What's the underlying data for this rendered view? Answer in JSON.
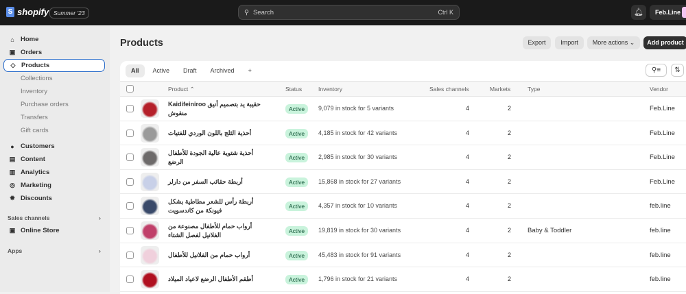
{
  "topbar": {
    "brand": "shopify",
    "edition": "Summer '23",
    "search_placeholder": "Search",
    "search_shortcut": "Ctrl K",
    "account": "Feb.Line"
  },
  "sidebar": {
    "items": [
      {
        "label": "Home",
        "icon": "home-icon",
        "glyph": "⌂"
      },
      {
        "label": "Orders",
        "icon": "inbox-icon",
        "glyph": "▣"
      },
      {
        "label": "Products",
        "icon": "tag-icon",
        "glyph": "◇",
        "selected": true
      },
      {
        "label": "Collections",
        "sub": true
      },
      {
        "label": "Inventory",
        "sub": true
      },
      {
        "label": "Purchase orders",
        "sub": true
      },
      {
        "label": "Transfers",
        "sub": true
      },
      {
        "label": "Gift cards",
        "sub": true
      },
      {
        "label": "Customers",
        "icon": "person-icon",
        "glyph": "●"
      },
      {
        "label": "Content",
        "icon": "content-icon",
        "glyph": "▤"
      },
      {
        "label": "Analytics",
        "icon": "chart-icon",
        "glyph": "▥"
      },
      {
        "label": "Marketing",
        "icon": "target-icon",
        "glyph": "◎"
      },
      {
        "label": "Discounts",
        "icon": "discount-icon",
        "glyph": "✹"
      }
    ],
    "sales_channels": "Sales channels",
    "online_store": "Online Store",
    "apps": "Apps"
  },
  "page": {
    "title": "Products",
    "export": "Export",
    "import": "Import",
    "more_actions": "More actions",
    "add_product": "Add product"
  },
  "tabs": [
    "All",
    "Active",
    "Draft",
    "Archived",
    "+"
  ],
  "columns": {
    "product": "Product",
    "status": "Status",
    "inventory": "Inventory",
    "sales_channels": "Sales channels",
    "markets": "Markets",
    "type": "Type",
    "vendor": "Vendor"
  },
  "rows": [
    {
      "name": "حقيبة يد بتصميم أنيق Kaidifeiniroo منقوش",
      "status": "Active",
      "inventory": "9,079 in stock for 5 variants",
      "channels": "4",
      "markets": "2",
      "type": "",
      "vendor": "Feb.Line",
      "thumb": "#b5202a",
      "two": true
    },
    {
      "name": "أحذية الثلج باللون الوردي للفتيات",
      "status": "Active",
      "inventory": "4,185 in stock for 42 variants",
      "channels": "4",
      "markets": "2",
      "type": "",
      "vendor": "Feb.Line",
      "thumb": "#9a9a9a"
    },
    {
      "name": "أحذية شتوية عالية الجودة للأطفال الرضع",
      "status": "Active",
      "inventory": "2,985 in stock for 30 variants",
      "channels": "4",
      "markets": "2",
      "type": "",
      "vendor": "Feb.Line",
      "thumb": "#6d6a6a",
      "two": true
    },
    {
      "name": "أربطة حقائب السفر من دارلر",
      "status": "Active",
      "inventory": "15,868 in stock for 27 variants",
      "channels": "4",
      "markets": "2",
      "type": "",
      "vendor": "Feb.Line",
      "thumb": "#c8d0e8"
    },
    {
      "name": "أربطة رأس للشعر مطاطية بشكل فيونكة من كاندسويت",
      "status": "Active",
      "inventory": "4,357 in stock for 10 variants",
      "channels": "4",
      "markets": "2",
      "type": "",
      "vendor": "feb.line",
      "thumb": "#3a4a6a",
      "two": true
    },
    {
      "name": "أرواب حمام للأطفال مصنوعة من الفلانيل لفصل الشتاء",
      "status": "Active",
      "inventory": "19,819 in stock for 30 variants",
      "channels": "4",
      "markets": "2",
      "type": "Baby & Toddler",
      "vendor": "feb.line",
      "thumb": "#c0406a",
      "two": true
    },
    {
      "name": "أرواب حمام من الفلانيل للأطفال",
      "status": "Active",
      "inventory": "45,483 in stock for 91 variants",
      "channels": "4",
      "markets": "2",
      "type": "",
      "vendor": "feb.line",
      "thumb": "#f0d0dc"
    },
    {
      "name": "أطقم الأطفال الرضع لاعياد الميلاد",
      "status": "Active",
      "inventory": "1,796 in stock for 21 variants",
      "channels": "4",
      "markets": "2",
      "type": "",
      "vendor": "feb.line",
      "thumb": "#b01020"
    }
  ]
}
